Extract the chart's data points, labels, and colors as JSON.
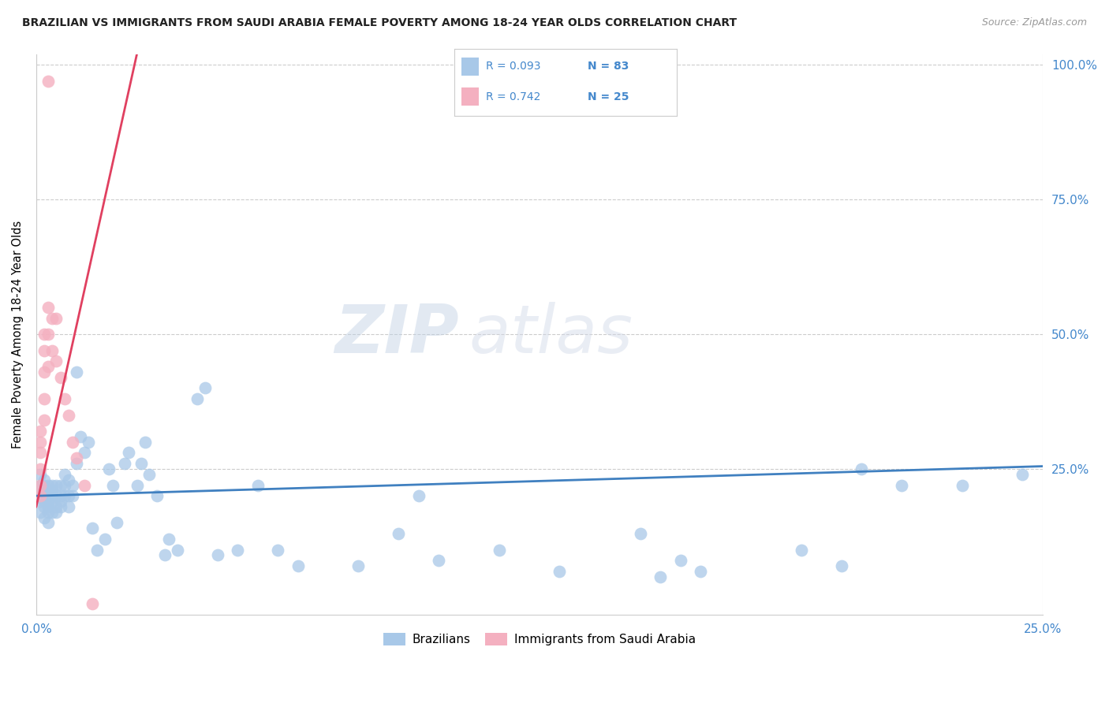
{
  "title": "BRAZILIAN VS IMMIGRANTS FROM SAUDI ARABIA FEMALE POVERTY AMONG 18-24 YEAR OLDS CORRELATION CHART",
  "source": "Source: ZipAtlas.com",
  "ylabel": "Female Poverty Among 18-24 Year Olds",
  "legend_r1": "R = 0.093",
  "legend_n1": "N = 83",
  "legend_r2": "R = 0.742",
  "legend_n2": "N = 25",
  "legend_label1": "Brazilians",
  "legend_label2": "Immigrants from Saudi Arabia",
  "blue_color": "#a8c8e8",
  "pink_color": "#f4b0c0",
  "blue_line_color": "#4080c0",
  "pink_line_color": "#e04060",
  "title_color": "#222222",
  "source_color": "#999999",
  "axis_label_color": "#4488cc",
  "watermark_color": "#d0e0f0",
  "watermark": "ZIPatlas",
  "xlim": [
    0.0,
    0.25
  ],
  "ylim": [
    0.0,
    1.0
  ],
  "blue_x": [
    0.001,
    0.001,
    0.001,
    0.001,
    0.001,
    0.002,
    0.002,
    0.002,
    0.002,
    0.002,
    0.002,
    0.002,
    0.003,
    0.003,
    0.003,
    0.003,
    0.003,
    0.003,
    0.004,
    0.004,
    0.004,
    0.004,
    0.004,
    0.005,
    0.005,
    0.005,
    0.005,
    0.006,
    0.006,
    0.006,
    0.006,
    0.007,
    0.007,
    0.007,
    0.008,
    0.008,
    0.008,
    0.009,
    0.009,
    0.01,
    0.01,
    0.011,
    0.012,
    0.013,
    0.014,
    0.015,
    0.017,
    0.018,
    0.019,
    0.02,
    0.022,
    0.023,
    0.025,
    0.026,
    0.027,
    0.028,
    0.03,
    0.032,
    0.033,
    0.035,
    0.04,
    0.042,
    0.045,
    0.05,
    0.055,
    0.06,
    0.065,
    0.08,
    0.09,
    0.095,
    0.1,
    0.115,
    0.13,
    0.15,
    0.155,
    0.16,
    0.165,
    0.19,
    0.2,
    0.205,
    0.215,
    0.23,
    0.245
  ],
  "blue_y": [
    0.2,
    0.22,
    0.19,
    0.17,
    0.24,
    0.21,
    0.19,
    0.23,
    0.2,
    0.18,
    0.16,
    0.22,
    0.2,
    0.18,
    0.22,
    0.19,
    0.15,
    0.17,
    0.21,
    0.19,
    0.17,
    0.22,
    0.2,
    0.18,
    0.22,
    0.2,
    0.17,
    0.19,
    0.22,
    0.2,
    0.18,
    0.22,
    0.2,
    0.24,
    0.2,
    0.23,
    0.18,
    0.2,
    0.22,
    0.26,
    0.43,
    0.31,
    0.28,
    0.3,
    0.14,
    0.1,
    0.12,
    0.25,
    0.22,
    0.15,
    0.26,
    0.28,
    0.22,
    0.26,
    0.3,
    0.24,
    0.2,
    0.09,
    0.12,
    0.1,
    0.38,
    0.4,
    0.09,
    0.1,
    0.22,
    0.1,
    0.07,
    0.07,
    0.13,
    0.2,
    0.08,
    0.1,
    0.06,
    0.13,
    0.05,
    0.08,
    0.06,
    0.1,
    0.07,
    0.25,
    0.22,
    0.22,
    0.24
  ],
  "pink_x": [
    0.001,
    0.001,
    0.001,
    0.001,
    0.001,
    0.001,
    0.002,
    0.002,
    0.002,
    0.002,
    0.002,
    0.003,
    0.003,
    0.003,
    0.004,
    0.004,
    0.005,
    0.005,
    0.006,
    0.007,
    0.008,
    0.009,
    0.01,
    0.012,
    0.014
  ],
  "pink_y": [
    0.2,
    0.22,
    0.25,
    0.28,
    0.3,
    0.32,
    0.34,
    0.38,
    0.43,
    0.47,
    0.5,
    0.44,
    0.5,
    0.55,
    0.47,
    0.53,
    0.45,
    0.53,
    0.42,
    0.38,
    0.35,
    0.3,
    0.27,
    0.22,
    0.0
  ],
  "pink_line_x": [
    0.0,
    0.025
  ],
  "pink_line_y": [
    0.18,
    1.02
  ],
  "blue_line_x": [
    0.0,
    0.25
  ],
  "blue_line_y": [
    0.2,
    0.255
  ]
}
